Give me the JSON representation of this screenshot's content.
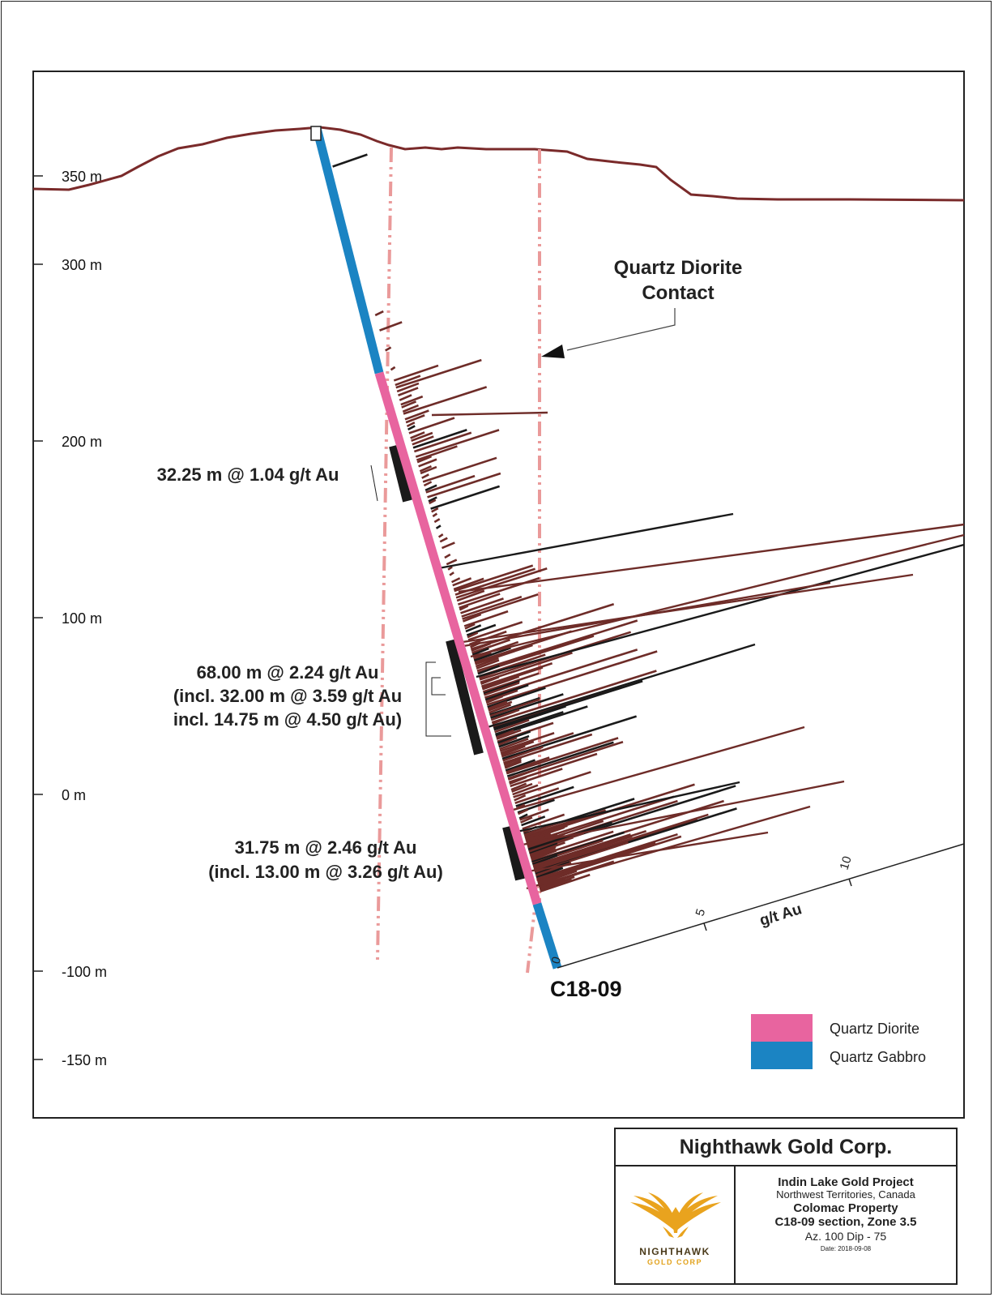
{
  "y_axis": {
    "unit": "m",
    "ticks": [
      {
        "value": 350,
        "label": "350 m"
      },
      {
        "value": 300,
        "label": "300 m"
      },
      {
        "value": 200,
        "label": "200 m"
      },
      {
        "value": 100,
        "label": "100 m"
      },
      {
        "value": 0,
        "label": "0 m"
      },
      {
        "value": -100,
        "label": "-100 m"
      },
      {
        "value": -150,
        "label": "-150 m"
      }
    ]
  },
  "drill_hole": {
    "id": "C18-09",
    "azimuth": 100,
    "dip": -75
  },
  "intervals": [
    {
      "lines": [
        "32.25 m @ 1.04 g/t Au"
      ]
    },
    {
      "lines": [
        "68.00 m @ 2.24 g/t Au",
        "(incl. 32.00 m @ 3.59 g/t Au",
        "incl. 14.75 m @ 4.50 g/t Au)"
      ]
    },
    {
      "lines": [
        "31.75 m @ 2.46 g/t Au",
        "(incl. 13.00 m @ 3.26 g/t Au)"
      ]
    }
  ],
  "contact_label": {
    "line1": "Quartz Diorite",
    "line2": "Contact"
  },
  "grade_scale": {
    "unit": "g/t Au",
    "ticks": [
      "0",
      "5",
      "10"
    ]
  },
  "legend": [
    {
      "label": "Quartz Diorite",
      "color": "#e8649f"
    },
    {
      "label": "Quartz Gabbro",
      "color": "#1b84c3"
    }
  ],
  "colors": {
    "topography": "#7a2a2a",
    "assay": "#6e2c28",
    "contact": "#ea9a9a",
    "intercept": "#1a1a1a"
  },
  "title_block": {
    "company": "Nighthawk Gold Corp.",
    "logo_word": "NIGHTHAWK",
    "logo_sub": "GOLD CORP",
    "project": "Indin Lake Gold Project",
    "region": "Northwest Territories, Canada",
    "property": "Colomac Property",
    "section": "C18-09 section, Zone 3.5",
    "az_dip": "Az. 100  Dip - 75",
    "date": "Date: 2018-09-08"
  }
}
